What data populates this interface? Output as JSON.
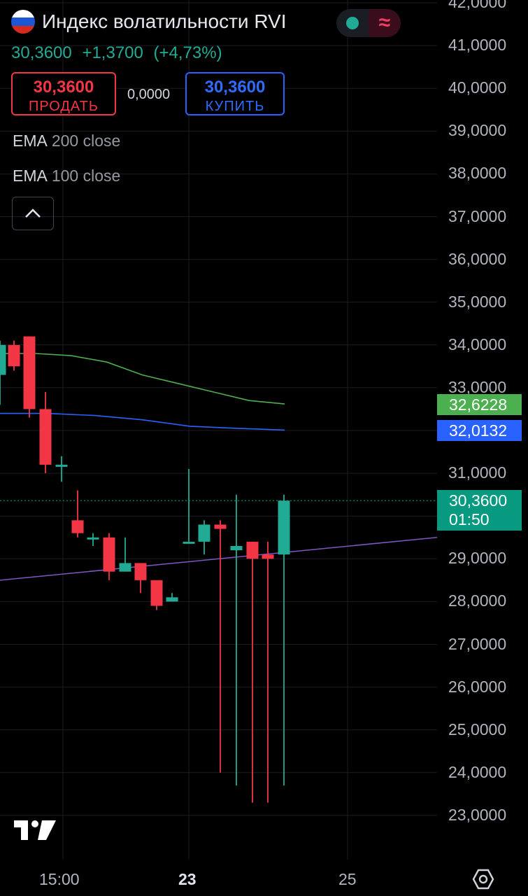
{
  "header": {
    "title": "Индекс волатильности RVI",
    "last_price": "30,3600",
    "change": "+1,3700",
    "change_pct": "(+4,73%)",
    "flag_colors": [
      "#ffffff",
      "#1c57d6",
      "#d52b1e"
    ]
  },
  "badges": {
    "market_status_icon": "green-dot-icon",
    "wave_icon": "≈"
  },
  "trade": {
    "sell_price": "30,3600",
    "sell_label": "ПРОДАТЬ",
    "spread": "0,0000",
    "buy_price": "30,3600",
    "buy_label": "КУПИТЬ"
  },
  "indicators": [
    {
      "name": "EMA",
      "args": "200 close"
    },
    {
      "name": "EMA",
      "args": "100 close"
    }
  ],
  "collapse_icon": "chevron-up-icon",
  "price_axis": [
    "42,0000",
    "41,0000",
    "40,0000",
    "39,0000",
    "38,0000",
    "37,0000",
    "36,0000",
    "35,0000",
    "34,0000",
    "33,0000",
    "31,0000",
    "30,0000",
    "29,0000",
    "28,0000",
    "27,0000",
    "26,0000",
    "25,0000",
    "24,0000",
    "23,0000"
  ],
  "price_tags": {
    "ema200": {
      "value": "32,6228",
      "color": "#4caf50"
    },
    "ema100": {
      "value": "32,0132",
      "color": "#2962ff"
    },
    "last": {
      "value": "30,3600",
      "countdown": "01:50",
      "color": "#089981"
    }
  },
  "time_axis": {
    "t1": "15:00",
    "t2": "23",
    "t3": "25"
  },
  "bottom_icons": {
    "logo": "tradingview-logo",
    "settings": "settings-icon"
  },
  "colors": {
    "up": "#22ab94",
    "down": "#f23645",
    "ema200": "#4caf50",
    "ema100": "#2962ff",
    "trendline": "#7e57c2"
  },
  "chart_data": {
    "type": "candlestick",
    "ylim": [
      22.8,
      42.1
    ],
    "candles": [
      {
        "o": 33.3,
        "h": 34.1,
        "l": 32.6,
        "c": 34.0
      },
      {
        "o": 34.0,
        "h": 34.1,
        "l": 33.4,
        "c": 33.5
      },
      {
        "o": 34.2,
        "h": 34.2,
        "l": 32.3,
        "c": 32.5
      },
      {
        "o": 32.5,
        "h": 32.9,
        "l": 31.0,
        "c": 31.2
      },
      {
        "o": 31.2,
        "h": 31.4,
        "l": 30.8,
        "c": 31.2
      },
      {
        "o": 29.9,
        "h": 30.6,
        "l": 29.5,
        "c": 29.6
      },
      {
        "o": 29.5,
        "h": 29.6,
        "l": 29.3,
        "c": 29.5
      },
      {
        "o": 29.5,
        "h": 29.6,
        "l": 28.5,
        "c": 28.7
      },
      {
        "o": 28.7,
        "h": 29.5,
        "l": 28.7,
        "c": 28.9
      },
      {
        "o": 28.9,
        "h": 28.9,
        "l": 28.2,
        "c": 28.5
      },
      {
        "o": 28.5,
        "h": 28.5,
        "l": 27.8,
        "c": 27.9
      },
      {
        "o": 28.0,
        "h": 28.2,
        "l": 28.0,
        "c": 28.1
      },
      {
        "o": 29.4,
        "h": 31.1,
        "l": 29.4,
        "c": 29.4
      },
      {
        "o": 29.4,
        "h": 29.9,
        "l": 29.1,
        "c": 29.8
      },
      {
        "o": 29.8,
        "h": 29.9,
        "l": 24.0,
        "c": 29.7
      },
      {
        "o": 29.2,
        "h": 30.5,
        "l": 23.7,
        "c": 29.3
      },
      {
        "o": 29.4,
        "h": 29.4,
        "l": 23.3,
        "c": 29.0
      },
      {
        "o": 29.1,
        "h": 29.4,
        "l": 23.3,
        "c": 29.0
      },
      {
        "o": 29.1,
        "h": 30.5,
        "l": 23.7,
        "c": 30.36
      }
    ],
    "ema200": [
      33.8,
      33.8,
      33.75,
      33.6,
      33.3,
      33.1,
      32.9,
      32.7,
      32.62
    ],
    "ema100": [
      32.4,
      32.4,
      32.35,
      32.25,
      32.1,
      32.05,
      32.01
    ],
    "trendline": [
      28.5,
      29.5
    ]
  }
}
